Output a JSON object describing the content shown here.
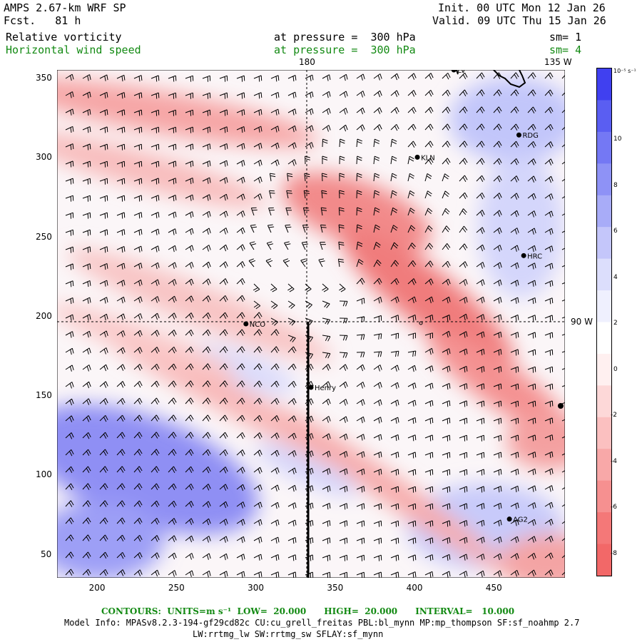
{
  "header": {
    "model": "AMPS 2.67-km WRF SP",
    "forecast": "Fcst.   81 h",
    "init": "Init. 00 UTC Mon 12 Jan 26",
    "valid": "Valid. 09 UTC Thu 15 Jan 26",
    "field1": {
      "name": "Relative vorticity",
      "level": "at pressure =  300 hPa",
      "sm": "sm= 1"
    },
    "field2": {
      "name": "Horizontal wind speed",
      "level": "at pressure =  300 hPa",
      "sm": "sm= 4"
    }
  },
  "map": {
    "x_ticks": [
      "200",
      "250",
      "300",
      "350",
      "400",
      "450"
    ],
    "y_ticks": [
      "50",
      "100",
      "150",
      "200",
      "250",
      "300",
      "350"
    ],
    "meridian_label_top_left": "180",
    "meridian_label_top_right": "135 W",
    "meridian_label_right": "90 W",
    "stations": [
      {
        "name": "RDG",
        "x": 466,
        "y": 314
      },
      {
        "name": "KLN",
        "x": 402,
        "y": 300
      },
      {
        "name": "HRC",
        "x": 469,
        "y": 238
      },
      {
        "name": "NCO",
        "x": 294,
        "y": 195
      },
      {
        "name": "Henry",
        "x": 335,
        "y": 155
      },
      {
        "name": "AG2",
        "x": 460,
        "y": 72
      },
      {
        "name": "LV",
        "x": 425,
        "y": 355
      }
    ],
    "colors": {
      "positive": "#4e56f0",
      "negative": "#f07878",
      "line": "#000000"
    }
  },
  "colorbar": {
    "units": "10⁻⁵ s⁻¹",
    "ticks": [
      "10",
      "8",
      "6",
      "4",
      "2",
      "0",
      "-2",
      "-4",
      "-6",
      "-8"
    ],
    "colors": [
      "#4040f0",
      "#5a5ef2",
      "#7478f4",
      "#8e92f6",
      "#a8acf8",
      "#c4c6fa",
      "#dcdefc",
      "#eff0fe",
      "#ffffff",
      "#fff0f0",
      "#fdd8d8",
      "#fbc0c0",
      "#f8a8a8",
      "#f69090",
      "#f47878",
      "#f26868"
    ]
  },
  "footer": {
    "contours": "CONTOURS:  UNITS=m s⁻¹  LOW=  20.000      HIGH=  20.000      INTERVAL=   10.000",
    "model_info": "Model Info: MPASv8.2.3-194-gf29cd82c CU:cu_grell_freitas PBL:bl_mynn MP:mp_thompson SF:sf_noahmp 2.7",
    "model_info2": "LW:rrtmg_lw SW:rrtmg_sw SFLAY:sf_mynn"
  }
}
